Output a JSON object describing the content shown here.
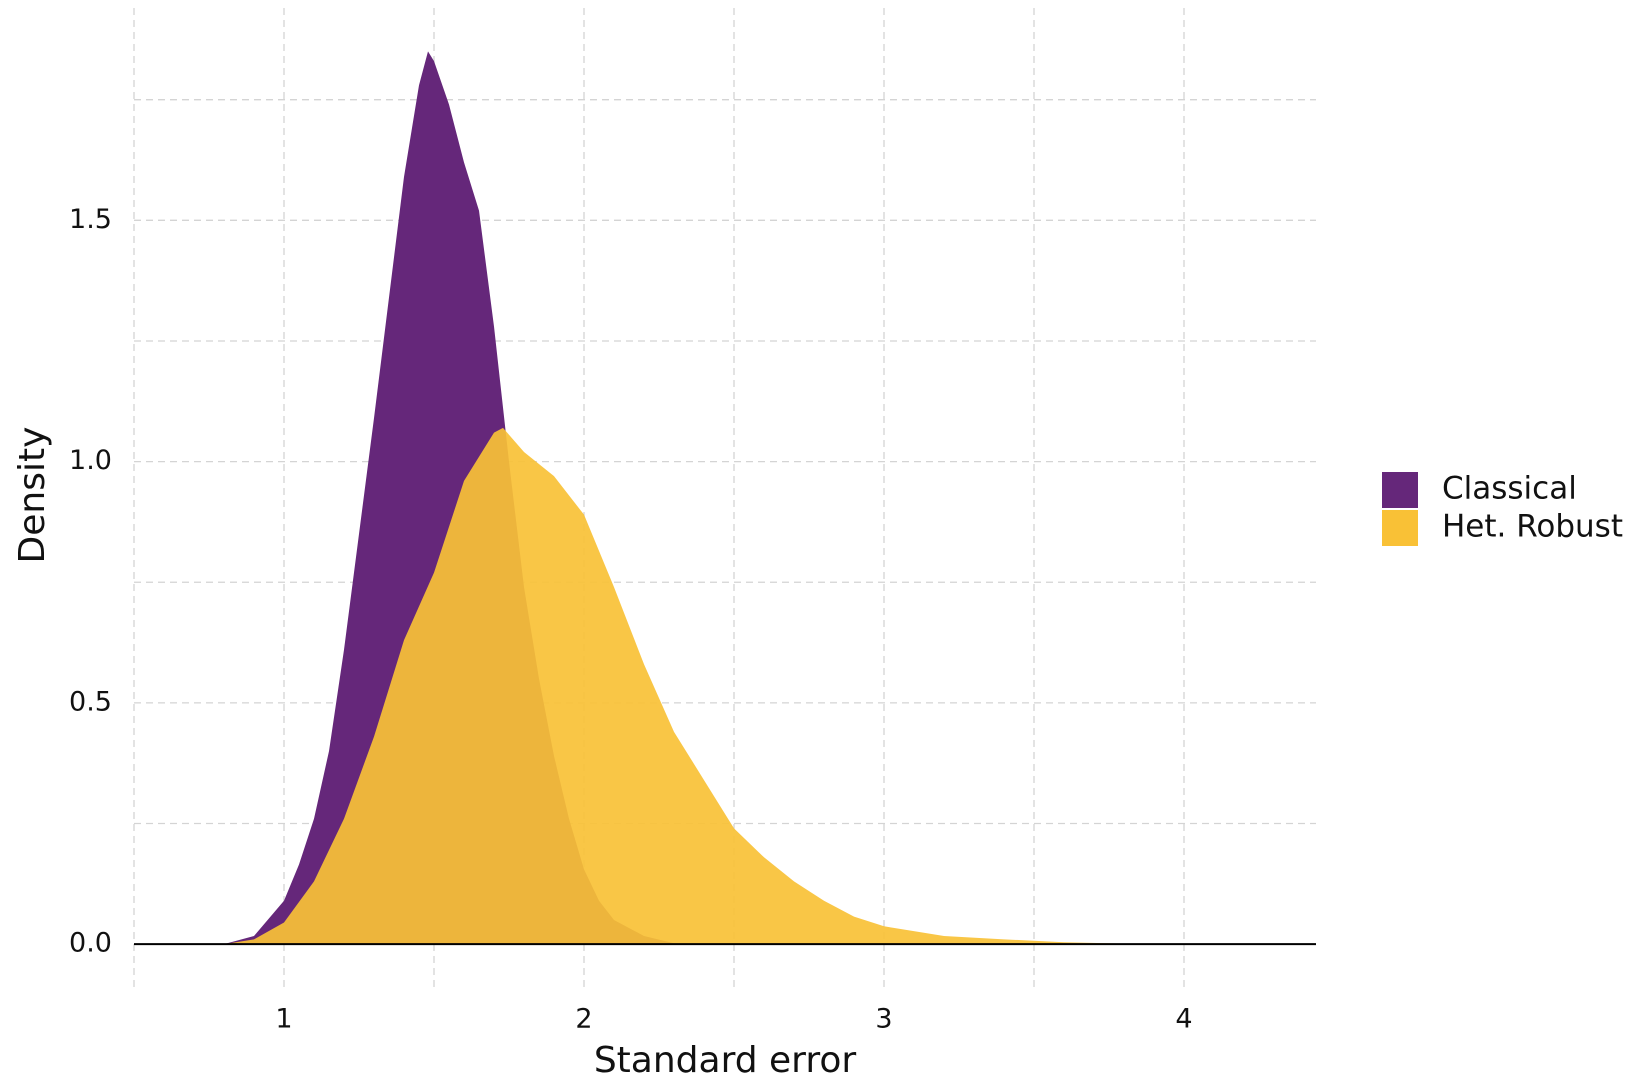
{
  "chart_data": {
    "type": "area",
    "x_label": "Standard error",
    "y_label": "Density",
    "xlim": [
      0.5,
      4.44
    ],
    "ylim": [
      -0.095,
      1.94
    ],
    "xticks": [
      1,
      2,
      3,
      4
    ],
    "yticks": [
      {
        "value": 0,
        "label": "0.0"
      },
      {
        "value": 0.5,
        "label": "0.5"
      },
      {
        "value": 1,
        "label": "1.0"
      },
      {
        "value": 1.5,
        "label": "1.5"
      }
    ],
    "xminor": [
      0.5,
      1.5,
      2.5,
      3.5
    ],
    "yminor": [
      0.25,
      0.75,
      1.25,
      1.75
    ],
    "grid": true,
    "legend": "right",
    "series": [
      {
        "name": "Classical",
        "color": "#65277a",
        "x": [
          0.8,
          0.9,
          1.0,
          1.05,
          1.1,
          1.15,
          1.2,
          1.25,
          1.3,
          1.35,
          1.4,
          1.45,
          1.48,
          1.5,
          1.55,
          1.6,
          1.65,
          1.7,
          1.75,
          1.8,
          1.85,
          1.9,
          1.95,
          2.0,
          2.05,
          2.1,
          2.2,
          2.3,
          2.5
        ],
        "values": [
          0,
          0.017,
          0.09,
          0.165,
          0.26,
          0.4,
          0.61,
          0.85,
          1.09,
          1.34,
          1.59,
          1.78,
          1.85,
          1.83,
          1.74,
          1.62,
          1.52,
          1.28,
          1.0,
          0.74,
          0.55,
          0.39,
          0.26,
          0.155,
          0.09,
          0.05,
          0.017,
          0.002,
          0
        ]
      },
      {
        "name": "Het. Robust",
        "color": "#f9c136",
        "x": [
          0.8,
          0.9,
          1.0,
          1.1,
          1.2,
          1.3,
          1.4,
          1.5,
          1.6,
          1.7,
          1.73,
          1.8,
          1.9,
          2.0,
          2.1,
          2.2,
          2.3,
          2.4,
          2.5,
          2.6,
          2.7,
          2.8,
          2.9,
          3.0,
          3.2,
          3.4,
          3.6,
          3.8,
          4.2
        ],
        "values": [
          0,
          0.01,
          0.045,
          0.13,
          0.26,
          0.43,
          0.63,
          0.77,
          0.96,
          1.06,
          1.07,
          1.02,
          0.97,
          0.89,
          0.74,
          0.58,
          0.44,
          0.34,
          0.24,
          0.18,
          0.13,
          0.09,
          0.057,
          0.037,
          0.017,
          0.01,
          0.004,
          0.001,
          0
        ]
      }
    ]
  }
}
